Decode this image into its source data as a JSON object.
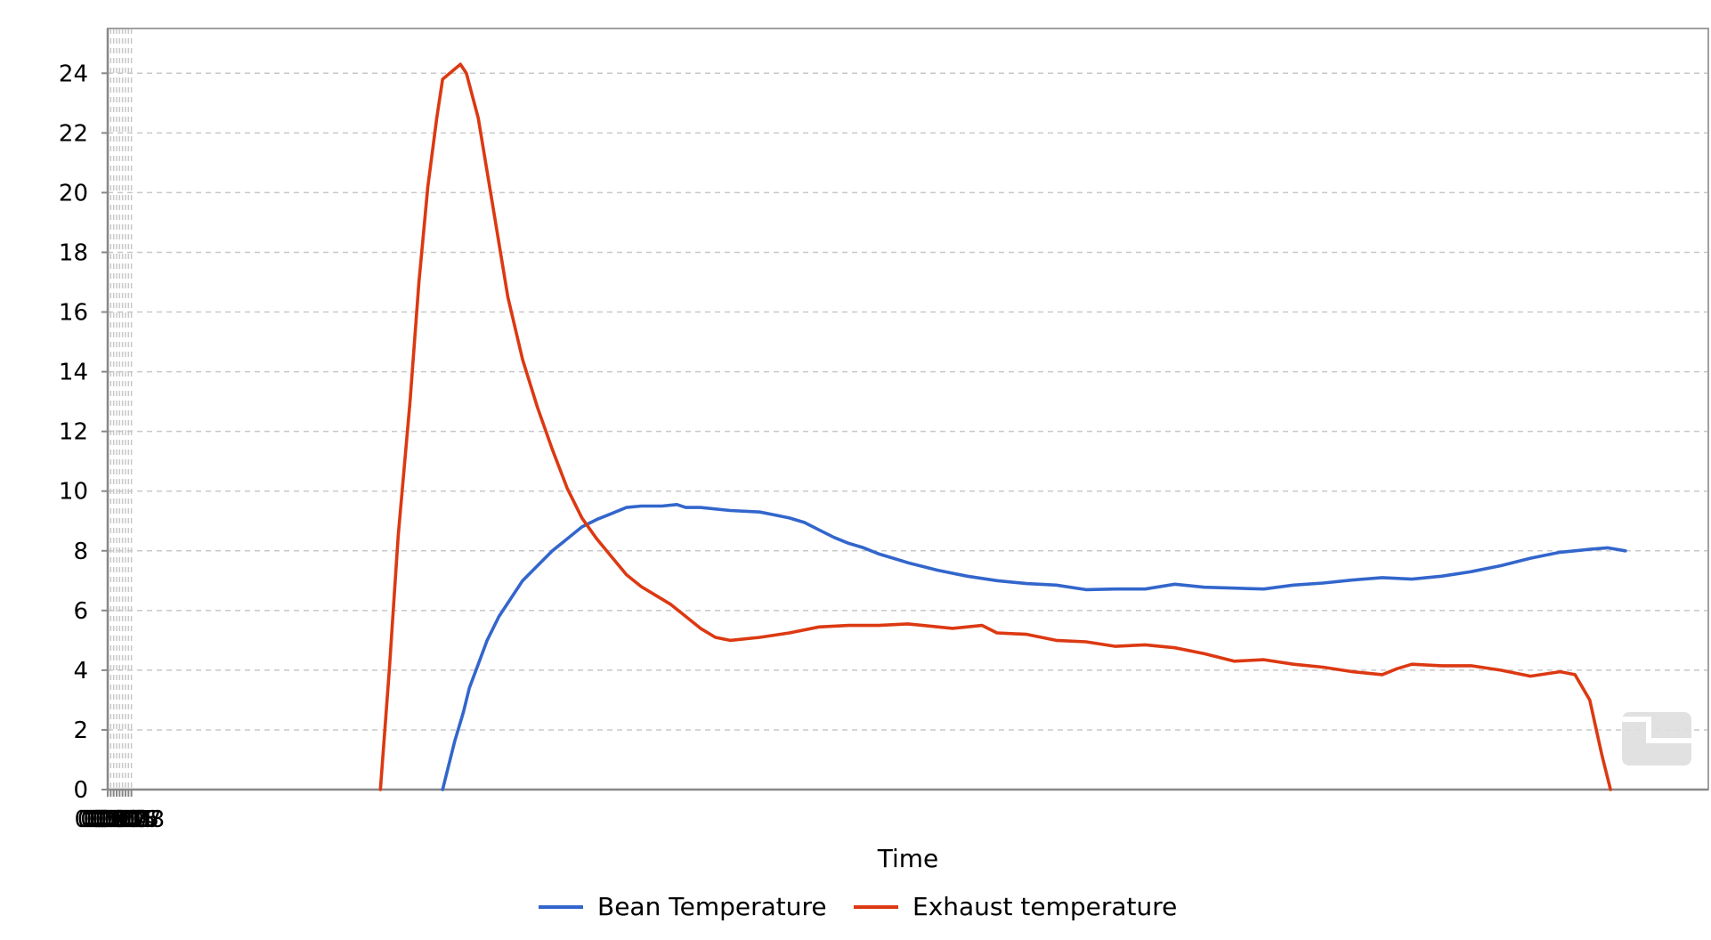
{
  "chart_data": {
    "type": "line",
    "title": "",
    "xlabel": "Time",
    "ylabel": "",
    "xlim": [
      0,
      540
    ],
    "ylim": [
      0,
      25.5
    ],
    "grid": true,
    "legend_position": "bottom-center",
    "x_ticks": [
      "00:00",
      "00:01",
      "00:02",
      "00:03",
      "00:04",
      "00:05",
      "00:06",
      "00:07",
      "00:08"
    ],
    "y_ticks": [
      "0",
      "2",
      "4",
      "6",
      "8",
      "10",
      "12",
      "14",
      "16",
      "18",
      "20",
      "22",
      "24"
    ],
    "series": [
      {
        "name": "Bean Temperature",
        "color": "#3366cc",
        "points": [
          [
            "00:01:53",
            0.0
          ],
          [
            "00:01:55",
            0.8
          ],
          [
            "00:01:57",
            1.6
          ],
          [
            "00:02:00",
            2.6
          ],
          [
            "00:02:02",
            3.4
          ],
          [
            "00:02:05",
            4.2
          ],
          [
            "00:02:08",
            5.0
          ],
          [
            "00:02:12",
            5.8
          ],
          [
            "00:02:16",
            6.4
          ],
          [
            "00:02:20",
            7.0
          ],
          [
            "00:02:25",
            7.5
          ],
          [
            "00:02:30",
            8.0
          ],
          [
            "00:02:35",
            8.4
          ],
          [
            "00:02:40",
            8.8
          ],
          [
            "00:02:45",
            9.05
          ],
          [
            "00:02:50",
            9.25
          ],
          [
            "00:02:55",
            9.45
          ],
          [
            "00:03:00",
            9.5
          ],
          [
            "00:03:07",
            9.5
          ],
          [
            "00:03:12",
            9.55
          ],
          [
            "00:03:15",
            9.45
          ],
          [
            "00:03:20",
            9.45
          ],
          [
            "00:03:30",
            9.35
          ],
          [
            "00:03:40",
            9.3
          ],
          [
            "00:03:45",
            9.2
          ],
          [
            "00:03:50",
            9.1
          ],
          [
            "00:03:55",
            8.95
          ],
          [
            "00:04:00",
            8.7
          ],
          [
            "00:04:05",
            8.45
          ],
          [
            "00:04:10",
            8.25
          ],
          [
            "00:04:15",
            8.1
          ],
          [
            "00:04:20",
            7.9
          ],
          [
            "00:04:25",
            7.75
          ],
          [
            "00:04:30",
            7.6
          ],
          [
            "00:04:40",
            7.35
          ],
          [
            "00:04:50",
            7.15
          ],
          [
            "00:05:00",
            7.0
          ],
          [
            "00:05:10",
            6.9
          ],
          [
            "00:05:20",
            6.85
          ],
          [
            "00:05:30",
            6.7
          ],
          [
            "00:05:40",
            6.72
          ],
          [
            "00:05:50",
            6.72
          ],
          [
            "00:06:00",
            6.88
          ],
          [
            "00:06:10",
            6.78
          ],
          [
            "00:06:20",
            6.75
          ],
          [
            "00:06:30",
            6.72
          ],
          [
            "00:06:40",
            6.85
          ],
          [
            "00:06:50",
            6.92
          ],
          [
            "00:07:00",
            7.02
          ],
          [
            "00:07:10",
            7.1
          ],
          [
            "00:07:20",
            7.05
          ],
          [
            "00:07:30",
            7.15
          ],
          [
            "00:07:40",
            7.3
          ],
          [
            "00:07:50",
            7.5
          ],
          [
            "00:08:00",
            7.75
          ],
          [
            "00:08:10",
            7.95
          ],
          [
            "00:08:20",
            8.05
          ],
          [
            "00:08:26",
            8.1
          ],
          [
            "00:08:32",
            8.0
          ]
        ]
      },
      {
        "name": "Exhaust temperature",
        "color": "#dc3912",
        "points": [
          [
            "00:01:32",
            0.0
          ],
          [
            "00:01:35",
            4.0
          ],
          [
            "00:01:38",
            8.5
          ],
          [
            "00:01:42",
            13.0
          ],
          [
            "00:01:45",
            17.0
          ],
          [
            "00:01:48",
            20.2
          ],
          [
            "00:01:51",
            22.5
          ],
          [
            "00:01:53",
            23.8
          ],
          [
            "00:01:59",
            24.3
          ],
          [
            "00:02:01",
            24.0
          ],
          [
            "00:02:05",
            22.5
          ],
          [
            "00:02:10",
            19.5
          ],
          [
            "00:02:15",
            16.5
          ],
          [
            "00:02:20",
            14.4
          ],
          [
            "00:02:25",
            12.8
          ],
          [
            "00:02:30",
            11.4
          ],
          [
            "00:02:35",
            10.1
          ],
          [
            "00:02:40",
            9.1
          ],
          [
            "00:02:45",
            8.4
          ],
          [
            "00:02:50",
            7.8
          ],
          [
            "00:02:55",
            7.2
          ],
          [
            "00:03:00",
            6.8
          ],
          [
            "00:03:05",
            6.5
          ],
          [
            "00:03:10",
            6.2
          ],
          [
            "00:03:15",
            5.8
          ],
          [
            "00:03:20",
            5.4
          ],
          [
            "00:03:25",
            5.1
          ],
          [
            "00:03:30",
            5.0
          ],
          [
            "00:03:40",
            5.1
          ],
          [
            "00:03:50",
            5.25
          ],
          [
            "00:04:00",
            5.45
          ],
          [
            "00:04:10",
            5.5
          ],
          [
            "00:04:20",
            5.5
          ],
          [
            "00:04:30",
            5.55
          ],
          [
            "00:04:35",
            5.5
          ],
          [
            "00:04:45",
            5.4
          ],
          [
            "00:04:55",
            5.5
          ],
          [
            "00:05:00",
            5.25
          ],
          [
            "00:05:10",
            5.2
          ],
          [
            "00:05:20",
            5.0
          ],
          [
            "00:05:30",
            4.95
          ],
          [
            "00:05:40",
            4.8
          ],
          [
            "00:05:50",
            4.85
          ],
          [
            "00:06:00",
            4.75
          ],
          [
            "00:06:10",
            4.55
          ],
          [
            "00:06:20",
            4.3
          ],
          [
            "00:06:30",
            4.35
          ],
          [
            "00:06:40",
            4.2
          ],
          [
            "00:06:50",
            4.1
          ],
          [
            "00:07:00",
            3.95
          ],
          [
            "00:07:10",
            3.85
          ],
          [
            "00:07:15",
            4.05
          ],
          [
            "00:07:20",
            4.2
          ],
          [
            "00:07:30",
            4.15
          ],
          [
            "00:07:40",
            4.15
          ],
          [
            "00:07:50",
            4.0
          ],
          [
            "00:08:00",
            3.8
          ],
          [
            "00:08:10",
            3.95
          ],
          [
            "00:08:15",
            3.85
          ],
          [
            "00:08:20",
            3.0
          ],
          [
            "00:08:24",
            1.2
          ],
          [
            "00:08:27",
            0.0
          ]
        ]
      }
    ]
  }
}
